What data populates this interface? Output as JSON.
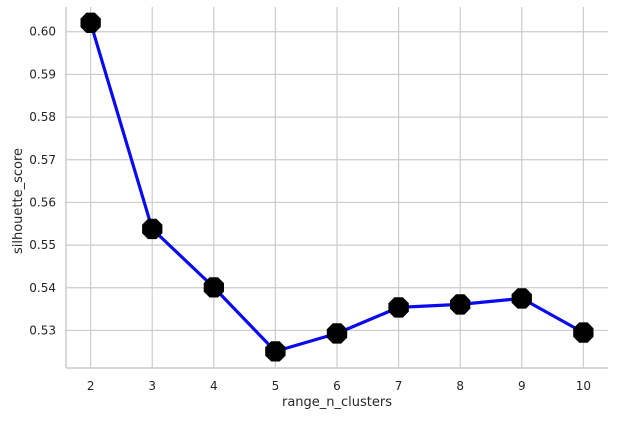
{
  "chart_data": {
    "type": "line",
    "title": "",
    "xlabel": "range_n_clusters",
    "ylabel": "silhouette_score",
    "x": [
      2,
      3,
      4,
      5,
      6,
      7,
      8,
      9,
      10
    ],
    "xticks": [
      "2",
      "3",
      "4",
      "5",
      "6",
      "7",
      "8",
      "9",
      "10"
    ],
    "yticks": [
      "0.53",
      "0.54",
      "0.55",
      "0.56",
      "0.57",
      "0.58",
      "0.59",
      "0.60"
    ],
    "xlim": [
      1.6,
      10.4
    ],
    "ylim": [
      0.5212,
      0.6058
    ],
    "grid": true,
    "series": [
      {
        "values": [
          0.6021,
          0.5538,
          0.5401,
          0.5251,
          0.5293,
          0.5354,
          0.5361,
          0.5375,
          0.5295
        ],
        "line_color": "#0a0aee",
        "marker": "octagon",
        "marker_color": "#000000"
      }
    ]
  }
}
